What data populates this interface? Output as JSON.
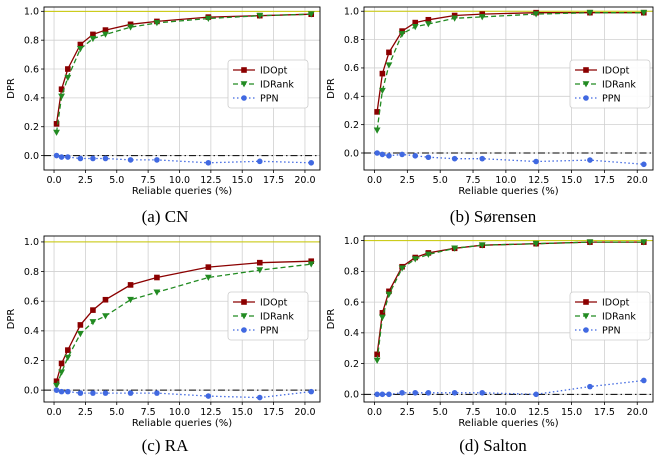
{
  "chart_data": [
    {
      "type": "line",
      "caption": "(a) CN",
      "xlabel": "Reliable queries (%)",
      "ylabel": "DPR",
      "xlim": [
        -0.8,
        21.2
      ],
      "ylim": [
        -0.1,
        1.03
      ],
      "xticks": [
        0.0,
        2.5,
        5.0,
        7.5,
        10.0,
        12.5,
        15.0,
        17.5,
        20.0
      ],
      "xtick_labels": [
        "0.0",
        "2.5",
        "5.0",
        "7.5",
        "10.0",
        "12.5",
        "15.0",
        "17.5",
        "20.0"
      ],
      "yticks": [
        0.0,
        0.2,
        0.4,
        0.6,
        0.8,
        1.0
      ],
      "ytick_labels": [
        "0.0",
        "0.2",
        "0.4",
        "0.6",
        "0.8",
        "1.0"
      ],
      "grid": true,
      "legend_position": "center-right",
      "reference_lines": [
        {
          "y": 1.0,
          "color": "#c8c800"
        },
        {
          "y": 0.0,
          "color": "#000000",
          "dash": "dashdot"
        }
      ],
      "series": [
        {
          "name": "IDOpt",
          "color": "#8b0000",
          "marker": "square",
          "line": "solid",
          "x": [
            0.2,
            0.6,
            1.1,
            2.1,
            3.1,
            4.1,
            6.1,
            8.2,
            12.3,
            16.4,
            20.5
          ],
          "y": [
            0.22,
            0.46,
            0.6,
            0.77,
            0.84,
            0.87,
            0.91,
            0.93,
            0.96,
            0.97,
            0.98
          ]
        },
        {
          "name": "IDRank",
          "color": "#228b22",
          "marker": "triangle-down",
          "line": "dashed",
          "x": [
            0.2,
            0.6,
            1.1,
            2.1,
            3.1,
            4.1,
            6.1,
            8.2,
            12.3,
            16.4,
            20.5
          ],
          "y": [
            0.16,
            0.41,
            0.54,
            0.74,
            0.81,
            0.84,
            0.89,
            0.92,
            0.95,
            0.97,
            0.98
          ]
        },
        {
          "name": "PPN",
          "color": "#4169e1",
          "marker": "circle",
          "line": "dotted",
          "x": [
            0.2,
            0.6,
            1.1,
            2.1,
            3.1,
            4.1,
            6.1,
            8.2,
            12.3,
            16.4,
            20.5
          ],
          "y": [
            0.0,
            -0.01,
            -0.01,
            -0.02,
            -0.02,
            -0.02,
            -0.03,
            -0.03,
            -0.05,
            -0.04,
            -0.05
          ]
        }
      ]
    },
    {
      "type": "line",
      "caption": "(b) Sørensen",
      "xlabel": "Reliable queries (%)",
      "ylabel": "DPR",
      "xlim": [
        -0.8,
        21.2
      ],
      "ylim": [
        -0.12,
        1.03
      ],
      "xticks": [
        0.0,
        2.5,
        5.0,
        7.5,
        10.0,
        12.5,
        15.0,
        17.5,
        20.0
      ],
      "xtick_labels": [
        "0.0",
        "2.5",
        "5.0",
        "7.5",
        "10.0",
        "12.5",
        "15.0",
        "17.5",
        "20.0"
      ],
      "yticks": [
        0.0,
        0.2,
        0.4,
        0.6,
        0.8,
        1.0
      ],
      "ytick_labels": [
        "0.0",
        "0.2",
        "0.4",
        "0.6",
        "0.8",
        "1.0"
      ],
      "grid": true,
      "legend_position": "center-right",
      "reference_lines": [
        {
          "y": 1.0,
          "color": "#c8c800"
        },
        {
          "y": 0.0,
          "color": "#000000",
          "dash": "dashdot"
        }
      ],
      "series": [
        {
          "name": "IDOpt",
          "color": "#8b0000",
          "marker": "square",
          "line": "solid",
          "x": [
            0.2,
            0.6,
            1.1,
            2.1,
            3.1,
            4.1,
            6.1,
            8.2,
            12.3,
            16.4,
            20.5
          ],
          "y": [
            0.29,
            0.56,
            0.71,
            0.86,
            0.92,
            0.94,
            0.97,
            0.98,
            0.99,
            0.99,
            0.99
          ]
        },
        {
          "name": "IDRank",
          "color": "#228b22",
          "marker": "triangle-down",
          "line": "dashed",
          "x": [
            0.2,
            0.6,
            1.1,
            2.1,
            3.1,
            4.1,
            6.1,
            8.2,
            12.3,
            16.4,
            20.5
          ],
          "y": [
            0.16,
            0.44,
            0.62,
            0.84,
            0.89,
            0.91,
            0.95,
            0.96,
            0.98,
            0.99,
            0.99
          ]
        },
        {
          "name": "PPN",
          "color": "#4169e1",
          "marker": "circle",
          "line": "dotted",
          "x": [
            0.2,
            0.6,
            1.1,
            2.1,
            3.1,
            4.1,
            6.1,
            8.2,
            12.3,
            16.4,
            20.5
          ],
          "y": [
            0.0,
            -0.01,
            -0.02,
            -0.01,
            -0.02,
            -0.03,
            -0.04,
            -0.04,
            -0.06,
            -0.05,
            -0.08
          ]
        }
      ]
    },
    {
      "type": "line",
      "caption": "(c) RA",
      "xlabel": "Reliable queries (%)",
      "ylabel": "DPR",
      "xlim": [
        -0.8,
        21.2
      ],
      "ylim": [
        -0.08,
        1.04
      ],
      "xticks": [
        0.0,
        2.5,
        5.0,
        7.5,
        10.0,
        12.5,
        15.0,
        17.5,
        20.0
      ],
      "xtick_labels": [
        "0.0",
        "2.5",
        "5.0",
        "7.5",
        "10.0",
        "12.5",
        "15.0",
        "17.5",
        "20.0"
      ],
      "yticks": [
        0.0,
        0.2,
        0.4,
        0.6,
        0.8,
        1.0
      ],
      "ytick_labels": [
        "0.0",
        "0.2",
        "0.4",
        "0.6",
        "0.8",
        "1.0"
      ],
      "grid": true,
      "legend_position": "center-right",
      "reference_lines": [
        {
          "y": 1.0,
          "color": "#c8c800"
        },
        {
          "y": 0.0,
          "color": "#000000",
          "dash": "dashdot"
        }
      ],
      "series": [
        {
          "name": "IDOpt",
          "color": "#8b0000",
          "marker": "square",
          "line": "solid",
          "x": [
            0.2,
            0.6,
            1.1,
            2.1,
            3.1,
            4.1,
            6.1,
            8.2,
            12.3,
            16.4,
            20.5
          ],
          "y": [
            0.06,
            0.18,
            0.27,
            0.44,
            0.54,
            0.61,
            0.71,
            0.76,
            0.83,
            0.86,
            0.87
          ]
        },
        {
          "name": "IDRank",
          "color": "#228b22",
          "marker": "triangle-down",
          "line": "dashed",
          "x": [
            0.2,
            0.6,
            1.1,
            2.1,
            3.1,
            4.1,
            6.1,
            8.2,
            12.3,
            16.4,
            20.5
          ],
          "y": [
            0.03,
            0.12,
            0.22,
            0.38,
            0.46,
            0.5,
            0.61,
            0.66,
            0.76,
            0.81,
            0.85
          ]
        },
        {
          "name": "PPN",
          "color": "#4169e1",
          "marker": "circle",
          "line": "dotted",
          "x": [
            0.2,
            0.6,
            1.1,
            2.1,
            3.1,
            4.1,
            6.1,
            8.2,
            12.3,
            16.4,
            20.5
          ],
          "y": [
            0.0,
            -0.01,
            -0.01,
            -0.02,
            -0.02,
            -0.02,
            -0.02,
            -0.02,
            -0.04,
            -0.05,
            -0.01
          ]
        }
      ]
    },
    {
      "type": "line",
      "caption": "(d) Salton",
      "xlabel": "Reliable queries (%)",
      "ylabel": "DPR",
      "xlim": [
        -0.8,
        21.2
      ],
      "ylim": [
        -0.05,
        1.03
      ],
      "xticks": [
        0.0,
        2.5,
        5.0,
        7.5,
        10.0,
        12.5,
        15.0,
        17.5,
        20.0
      ],
      "xtick_labels": [
        "0.0",
        "2.5",
        "5.0",
        "7.5",
        "10.0",
        "12.5",
        "15.0",
        "17.5",
        "20.0"
      ],
      "yticks": [
        0.0,
        0.2,
        0.4,
        0.6,
        0.8,
        1.0
      ],
      "ytick_labels": [
        "0.0",
        "0.2",
        "0.4",
        "0.6",
        "0.8",
        "1.0"
      ],
      "grid": true,
      "legend_position": "center-right",
      "reference_lines": [
        {
          "y": 1.0,
          "color": "#c8c800"
        },
        {
          "y": 0.0,
          "color": "#000000",
          "dash": "dashdot"
        }
      ],
      "series": [
        {
          "name": "IDOpt",
          "color": "#8b0000",
          "marker": "square",
          "line": "solid",
          "x": [
            0.2,
            0.6,
            1.1,
            2.1,
            3.1,
            4.1,
            6.1,
            8.2,
            12.3,
            16.4,
            20.5
          ],
          "y": [
            0.26,
            0.53,
            0.67,
            0.83,
            0.89,
            0.92,
            0.95,
            0.97,
            0.98,
            0.99,
            0.99
          ]
        },
        {
          "name": "IDRank",
          "color": "#228b22",
          "marker": "triangle-down",
          "line": "dashed",
          "x": [
            0.2,
            0.6,
            1.1,
            2.1,
            3.1,
            4.1,
            6.1,
            8.2,
            12.3,
            16.4,
            20.5
          ],
          "y": [
            0.22,
            0.5,
            0.65,
            0.82,
            0.88,
            0.91,
            0.95,
            0.97,
            0.98,
            0.99,
            0.99
          ]
        },
        {
          "name": "PPN",
          "color": "#4169e1",
          "marker": "circle",
          "line": "dotted",
          "x": [
            0.2,
            0.6,
            1.1,
            2.1,
            3.1,
            4.1,
            6.1,
            8.2,
            12.3,
            16.4,
            20.5
          ],
          "y": [
            0.0,
            0.0,
            0.0,
            0.01,
            0.01,
            0.01,
            0.01,
            0.01,
            0.0,
            0.05,
            0.09
          ]
        }
      ]
    }
  ]
}
